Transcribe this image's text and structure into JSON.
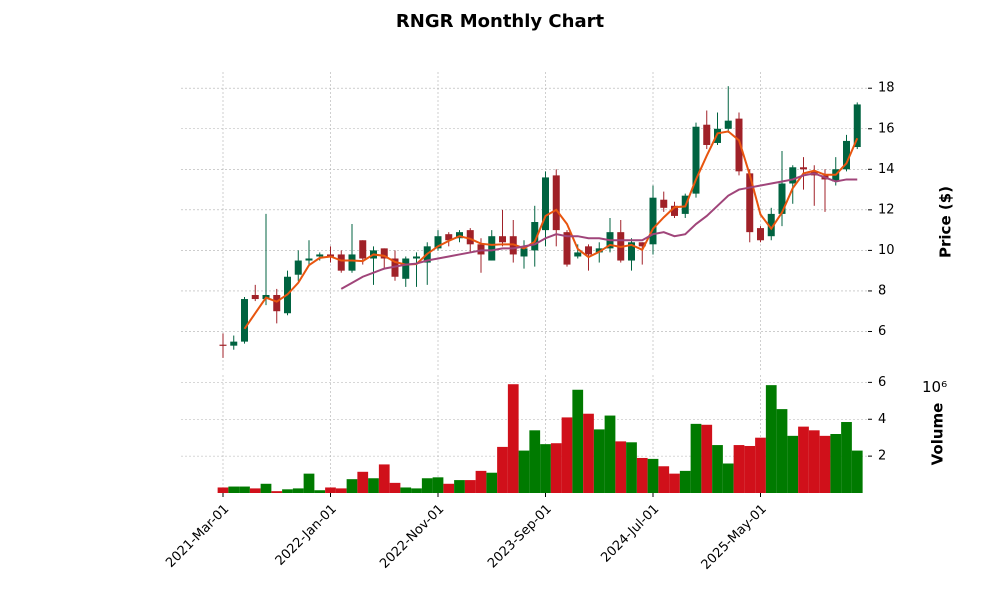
{
  "chart_data": {
    "type": "candlestick",
    "title": "RNGR Monthly Chart",
    "ylabel": "Price ($)",
    "volume_label": "Volume",
    "volume_offset": "10⁶",
    "categories": [
      "2021-Mar-01",
      null,
      null,
      null,
      null,
      null,
      null,
      null,
      null,
      null,
      "2022-Jan-01",
      null,
      null,
      null,
      null,
      null,
      null,
      null,
      null,
      null,
      "2022-Nov-01",
      null,
      null,
      null,
      null,
      null,
      null,
      null,
      null,
      null,
      "2023-Sep-01",
      null,
      null,
      null,
      null,
      null,
      null,
      null,
      null,
      null,
      "2024-Jul-01",
      null,
      null,
      null,
      null,
      null,
      null,
      null,
      null,
      null,
      "2025-May-01",
      null,
      null,
      null,
      null,
      null,
      null,
      null,
      null,
      null
    ],
    "open": [
      5.35,
      5.3,
      5.5,
      7.8,
      7.6,
      7.8,
      6.9,
      8.8,
      9.5,
      9.7,
      9.8,
      9.8,
      9.0,
      10.5,
      9.6,
      10.1,
      9.6,
      8.6,
      9.6,
      9.4,
      10.1,
      10.8,
      10.6,
      11.0,
      10.3,
      9.5,
      10.7,
      10.7,
      9.7,
      10.0,
      11.0,
      13.7,
      10.9,
      9.7,
      10.2,
      9.9,
      10.1,
      10.9,
      9.5,
      10.4,
      10.3,
      12.5,
      12.2,
      11.8,
      12.8,
      16.2,
      15.3,
      16.0,
      16.5,
      13.8,
      11.1,
      10.7,
      11.8,
      13.3,
      14.1,
      13.9,
      13.7,
      13.4,
      14.0,
      15.1
    ],
    "high": [
      5.9,
      5.8,
      7.7,
      8.3,
      11.8,
      8.1,
      9.0,
      10.0,
      10.5,
      9.9,
      10.2,
      10.0,
      11.3,
      10.5,
      10.2,
      10.1,
      10.0,
      9.7,
      9.9,
      10.4,
      11.0,
      10.9,
      11.0,
      11.1,
      10.6,
      11.0,
      12.0,
      11.5,
      10.5,
      12.2,
      13.9,
      14.0,
      11.0,
      10.3,
      10.3,
      10.4,
      11.6,
      11.5,
      10.6,
      10.4,
      13.2,
      12.9,
      12.4,
      12.8,
      16.3,
      16.9,
      16.8,
      18.1,
      16.8,
      14.0,
      11.2,
      12.1,
      14.9,
      14.2,
      14.6,
      14.2,
      14.0,
      14.6,
      15.7,
      17.3
    ],
    "low": [
      4.7,
      5.1,
      5.4,
      7.5,
      7.3,
      6.4,
      6.8,
      8.5,
      9.3,
      9.5,
      9.4,
      8.9,
      8.9,
      9.3,
      8.3,
      9.1,
      8.5,
      8.2,
      8.2,
      8.3,
      10.0,
      10.2,
      10.4,
      9.9,
      8.9,
      9.5,
      10.2,
      9.4,
      9.1,
      9.2,
      10.2,
      10.2,
      9.2,
      9.6,
      9.0,
      9.4,
      9.9,
      9.4,
      9.0,
      9.3,
      9.8,
      11.9,
      11.6,
      11.6,
      12.6,
      15.0,
      15.2,
      15.8,
      13.7,
      10.4,
      10.4,
      10.5,
      11.2,
      12.3,
      13.0,
      12.2,
      11.9,
      13.2,
      13.9,
      15.0
    ],
    "close": [
      5.3,
      5.5,
      7.6,
      7.6,
      7.8,
      7.0,
      8.7,
      9.5,
      9.6,
      9.8,
      9.7,
      9.0,
      9.8,
      9.6,
      10.0,
      9.6,
      8.7,
      9.6,
      9.7,
      10.2,
      10.7,
      10.5,
      10.9,
      10.3,
      9.8,
      10.7,
      10.4,
      9.8,
      10.1,
      11.4,
      13.6,
      11.0,
      9.3,
      9.9,
      9.8,
      10.1,
      10.9,
      9.5,
      10.4,
      10.2,
      12.6,
      12.1,
      11.7,
      12.7,
      16.1,
      15.2,
      16.0,
      16.4,
      13.9,
      10.9,
      10.5,
      11.8,
      13.3,
      14.1,
      14.0,
      13.7,
      13.5,
      14.0,
      15.4,
      17.2
    ],
    "volume": [
      0.3,
      0.35,
      0.35,
      0.25,
      0.5,
      0.1,
      0.2,
      0.25,
      1.05,
      0.15,
      0.3,
      0.25,
      0.75,
      1.15,
      0.8,
      1.55,
      0.55,
      0.3,
      0.25,
      0.8,
      0.85,
      0.5,
      0.7,
      0.7,
      1.2,
      1.1,
      2.5,
      5.9,
      2.3,
      3.4,
      2.65,
      2.7,
      4.1,
      5.6,
      4.3,
      3.45,
      4.2,
      2.8,
      2.75,
      1.9,
      1.85,
      1.45,
      1.05,
      1.2,
      3.75,
      3.7,
      2.6,
      1.6,
      2.6,
      2.55,
      3.0,
      5.85,
      4.55,
      3.1,
      3.6,
      3.4,
      3.1,
      3.2,
      3.85,
      2.3
    ],
    "up_color": "#006340",
    "down_color": "#a02128",
    "volume_up_color": "#007a00",
    "volume_down_color": "#d0101a",
    "moving_averages": [
      {
        "color": "#e8550f",
        "values": [
          null,
          null,
          6.13,
          6.9,
          7.67,
          7.47,
          7.83,
          8.4,
          9.27,
          9.63,
          9.7,
          9.5,
          9.5,
          9.47,
          9.8,
          9.73,
          9.43,
          9.3,
          9.33,
          9.83,
          10.2,
          10.47,
          10.7,
          10.57,
          10.33,
          10.27,
          10.3,
          10.3,
          10.1,
          10.43,
          11.7,
          12.0,
          11.3,
          10.07,
          9.67,
          9.93,
          10.27,
          10.17,
          10.27,
          10.03,
          11.07,
          11.63,
          12.13,
          12.17,
          13.5,
          14.67,
          15.77,
          15.87,
          15.43,
          13.73,
          11.77,
          11.07,
          11.87,
          13.07,
          13.8,
          13.93,
          13.73,
          13.73,
          14.3,
          15.53
        ]
      },
      {
        "color": "#a0457a",
        "values": [
          null,
          null,
          null,
          null,
          null,
          null,
          null,
          null,
          null,
          null,
          null,
          8.1,
          8.4,
          8.7,
          8.9,
          9.1,
          9.2,
          9.3,
          9.35,
          9.5,
          9.6,
          9.7,
          9.8,
          9.9,
          10.0,
          10.0,
          10.1,
          10.1,
          10.2,
          10.3,
          10.6,
          10.8,
          10.7,
          10.7,
          10.6,
          10.6,
          10.5,
          10.5,
          10.5,
          10.5,
          10.8,
          10.9,
          10.7,
          10.8,
          11.3,
          11.7,
          12.2,
          12.7,
          13.0,
          13.1,
          13.2,
          13.3,
          13.4,
          13.5,
          13.7,
          13.8,
          13.6,
          13.4,
          13.5,
          13.5
        ]
      }
    ],
    "ylim": [
      4.1,
      18.8
    ],
    "yticks": [
      6,
      8,
      10,
      12,
      14,
      16,
      18
    ],
    "volume_ylim": [
      0,
      6.4
    ],
    "volume_yticks": [
      2,
      4,
      6
    ],
    "grid": true
  }
}
